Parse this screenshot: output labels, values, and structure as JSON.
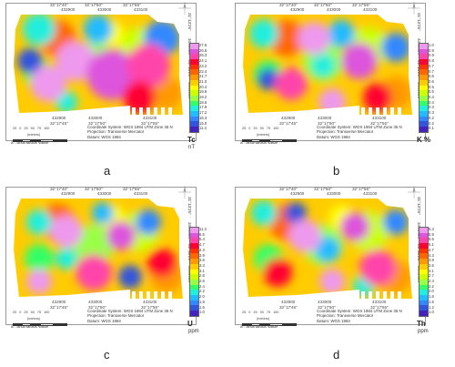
{
  "shared": {
    "lon_ticks": [
      "32°17'40\"",
      "32°17'50\"",
      "32°17'55\""
    ],
    "lon_ticks_bottom": [
      "32°17'45\"",
      "32°17'50\"",
      "32°17'55\""
    ],
    "easting_ticks": [
      "432900",
      "433000",
      "433100"
    ],
    "lat_ticks": [
      "31°13'20\"",
      "31°13'20\""
    ],
    "northing_ticks": [
      "3454600",
      "3454400"
    ],
    "right_ticks": [
      "31°13'25\"",
      "3454600",
      "31°13'20\"",
      "3454400"
    ],
    "scale_labels": [
      "25",
      "0",
      "25",
      "50",
      "75",
      "100"
    ],
    "scale_unit": "(meters)",
    "anomalous": "anomalous value",
    "coord_system": "Coordinate System: WGS 1984 UTM Zone 36 N",
    "projection": "Projection: Transverse Mercator",
    "datum": "Datum: WGS 1984"
  },
  "panels": [
    {
      "label": "a",
      "unit": "Tc",
      "unit_sub": "nT",
      "scale": [
        "27.5",
        "26.5",
        "25.3",
        "24.1",
        "23.2",
        "22.4",
        "21.7",
        "21.0",
        "20.4",
        "19.8",
        "19.2",
        "18.6",
        "17.9",
        "17.2",
        "16.3",
        "15.0",
        "11.3"
      ],
      "colors": [
        "#ee99ee",
        "#dd55dd",
        "#ff44aa",
        "#ff0033",
        "#ff3300",
        "#ff6600",
        "#ff9900",
        "#ffcc00",
        "#ffff00",
        "#ccff00",
        "#99ff44",
        "#33ff66",
        "#22eedd",
        "#22bbff",
        "#3388ff",
        "#3355dd",
        "#4422bb"
      ],
      "blobs_hot": [
        [
          70,
          55,
          22
        ],
        [
          110,
          70,
          28
        ],
        [
          150,
          60,
          24
        ],
        [
          140,
          95,
          18
        ],
        [
          40,
          80,
          20
        ]
      ],
      "blobs_cold": [
        [
          30,
          20,
          18
        ],
        [
          95,
          20,
          16
        ],
        [
          165,
          30,
          20
        ],
        [
          20,
          55,
          14
        ],
        [
          60,
          100,
          12
        ]
      ]
    },
    {
      "label": "b",
      "unit": "K %",
      "unit_sub": "",
      "scale": [
        "1.0",
        "0.9",
        "0.9",
        "0.8",
        "0.7",
        "0.7",
        "0.6",
        "0.6",
        "0.5",
        "0.5",
        "0.4",
        "0.4",
        "0.3",
        "0.3",
        "0.2",
        "0.2",
        "0.1"
      ],
      "colors": [
        "#ee99ee",
        "#dd55dd",
        "#ff44aa",
        "#ff0033",
        "#ff3300",
        "#ff6600",
        "#ff9900",
        "#ffcc00",
        "#ffff00",
        "#ccff00",
        "#99ff44",
        "#33ff66",
        "#22eedd",
        "#22bbff",
        "#3388ff",
        "#3355dd",
        "#4422bb"
      ],
      "blobs_hot": [
        [
          80,
          30,
          18
        ],
        [
          130,
          55,
          20
        ],
        [
          55,
          80,
          18
        ],
        [
          150,
          95,
          16
        ],
        [
          100,
          100,
          15
        ]
      ],
      "blobs_cold": [
        [
          25,
          25,
          16
        ],
        [
          110,
          25,
          15
        ],
        [
          170,
          40,
          16
        ],
        [
          30,
          75,
          12
        ],
        [
          90,
          60,
          13
        ]
      ]
    },
    {
      "label": "c",
      "unit": "U",
      "unit_sub": "ppm",
      "scale": [
        "11.3",
        "6.5",
        "5.4",
        "4.7",
        "4.3",
        "3.9",
        "3.6",
        "3.3",
        "3.1",
        "2.8",
        "2.6",
        "2.4",
        "2.2",
        "2.0",
        "1.8",
        "1.5",
        "1.0"
      ],
      "colors": [
        "#ee99ee",
        "#dd55dd",
        "#ff44aa",
        "#ff0033",
        "#ff3300",
        "#ff6600",
        "#ff9900",
        "#ffcc00",
        "#ffff00",
        "#ccff00",
        "#99ff44",
        "#33ff66",
        "#22eedd",
        "#22bbff",
        "#3388ff",
        "#3355dd",
        "#4422bb"
      ],
      "blobs_hot": [
        [
          60,
          40,
          18
        ],
        [
          120,
          45,
          16
        ],
        [
          90,
          85,
          20
        ],
        [
          165,
          75,
          16
        ],
        [
          30,
          95,
          14
        ]
      ],
      "blobs_cold": [
        [
          30,
          30,
          14
        ],
        [
          100,
          20,
          12
        ],
        [
          150,
          30,
          14
        ],
        [
          130,
          90,
          13
        ],
        [
          60,
          70,
          12
        ]
      ]
    },
    {
      "label": "d",
      "unit": "Th",
      "unit_sub": "ppm",
      "scale": [
        "6.3",
        "5.9",
        "5.5",
        "5.1",
        "4.7",
        "4.3",
        "3.9",
        "3.5",
        "3.1",
        "2.7",
        "2.4",
        "2.2",
        "2.0",
        "1.8",
        "1.5",
        "1.2",
        "1.0"
      ],
      "colors": [
        "#ee99ee",
        "#dd55dd",
        "#ff44aa",
        "#ff0033",
        "#ff3300",
        "#ff6600",
        "#ff9900",
        "#ffcc00",
        "#ffff00",
        "#ccff00",
        "#99ff44",
        "#33ff66",
        "#22eedd",
        "#22bbff",
        "#3388ff",
        "#3355dd",
        "#4422bb"
      ],
      "blobs_hot": [
        [
          70,
          45,
          18
        ],
        [
          125,
          35,
          16
        ],
        [
          150,
          80,
          20
        ],
        [
          40,
          85,
          16
        ],
        [
          100,
          95,
          14
        ]
      ],
      "blobs_cold": [
        [
          25,
          20,
          14
        ],
        [
          95,
          60,
          14
        ],
        [
          170,
          30,
          14
        ],
        [
          60,
          20,
          12
        ],
        [
          135,
          100,
          12
        ]
      ]
    }
  ]
}
